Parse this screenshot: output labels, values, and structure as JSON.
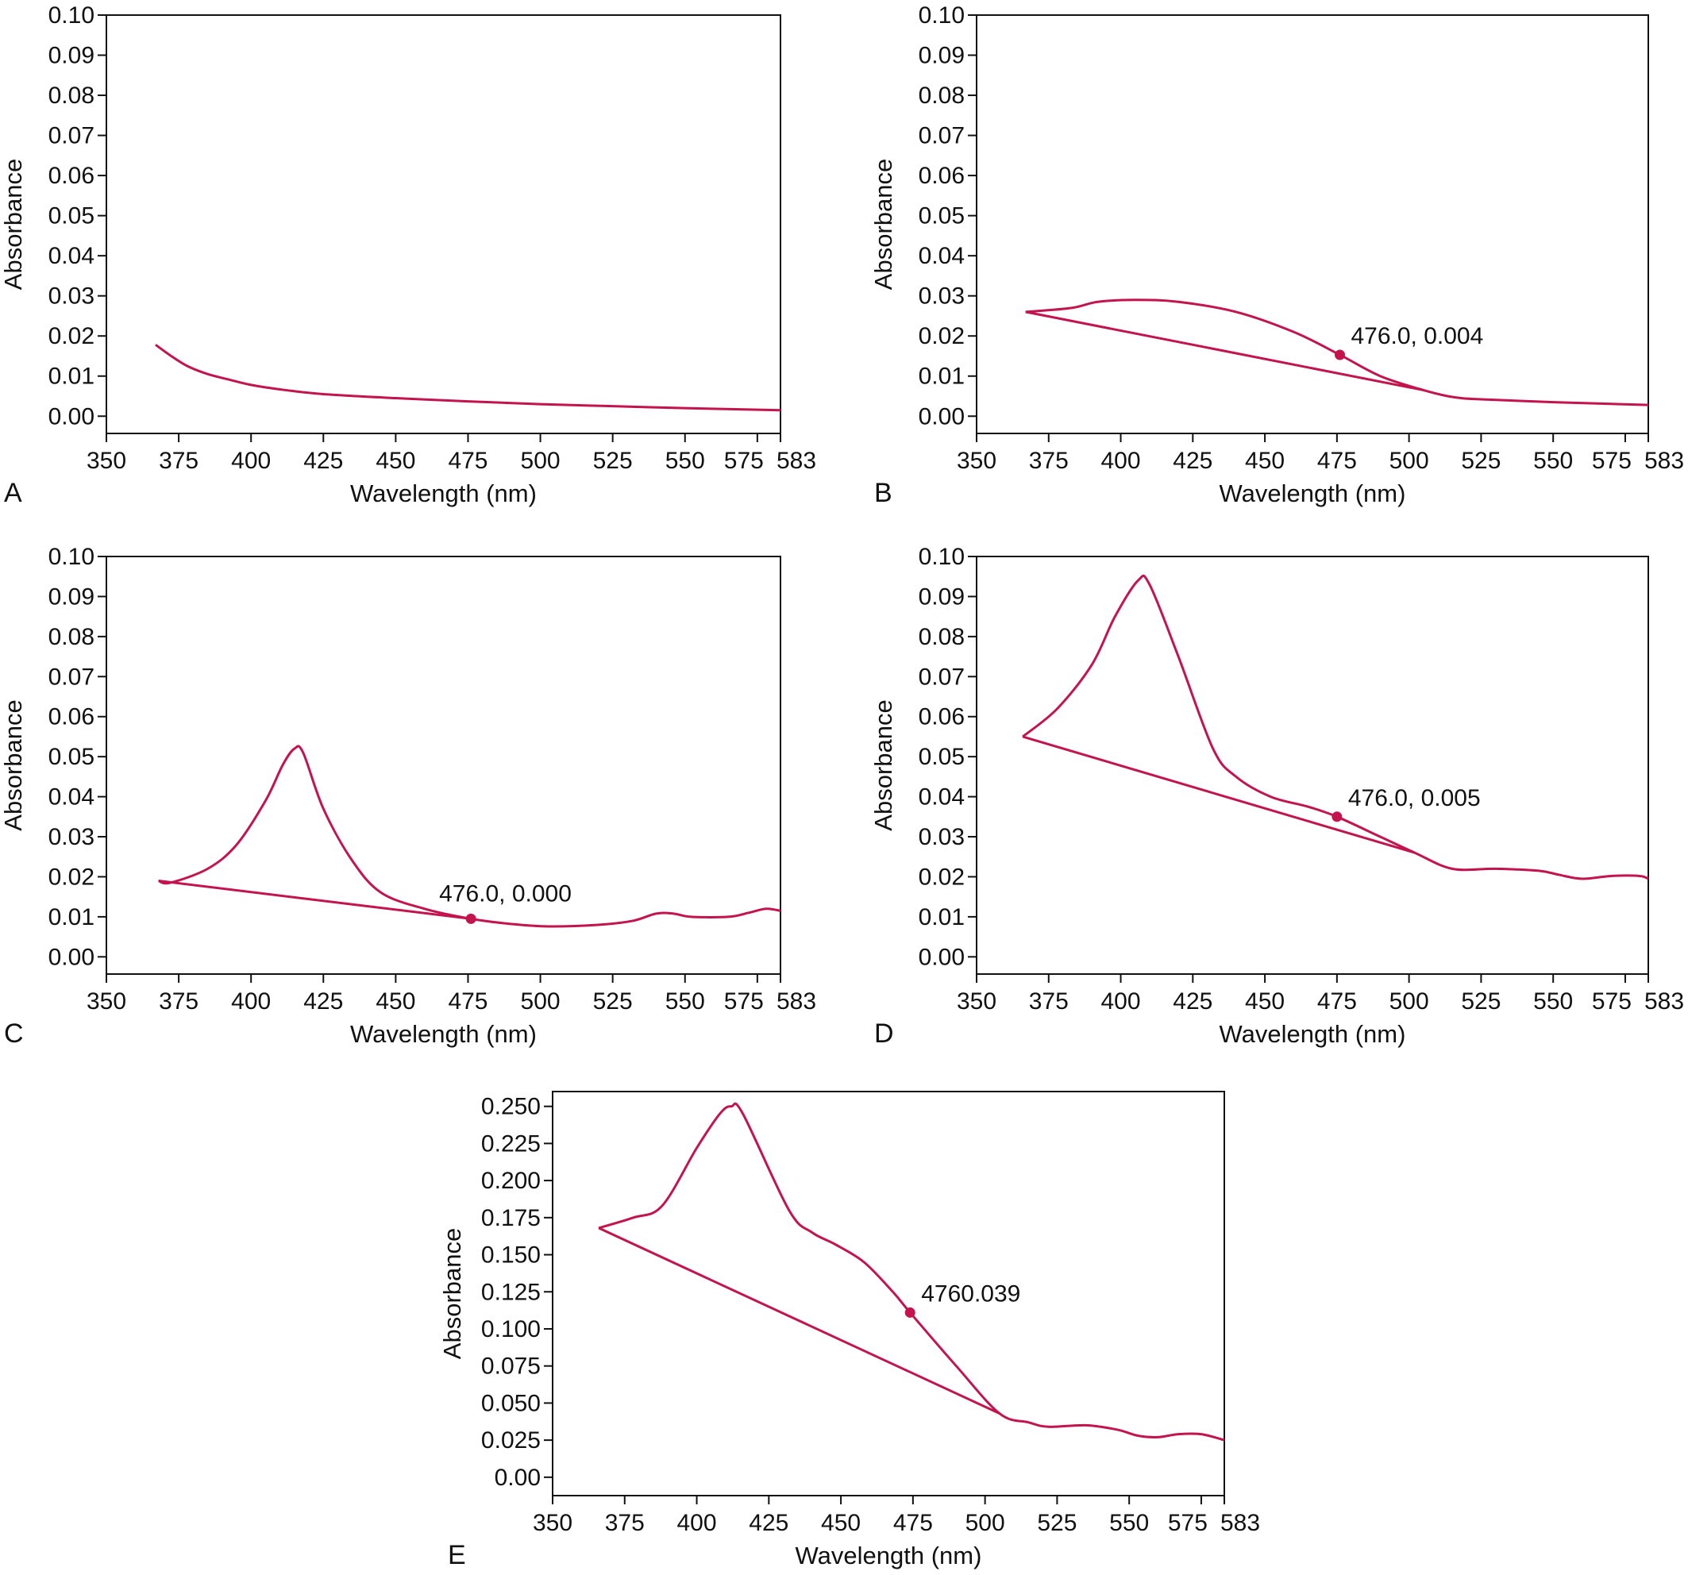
{
  "line_color": "#c4134d",
  "chart_data": [
    {
      "panel": "A",
      "type": "line",
      "xlabel": "Wavelength (nm)",
      "ylabel": "Absorbance",
      "xlim": [
        350,
        583
      ],
      "ylim": [
        -0.0043,
        0.1
      ],
      "x_ticks": [
        "350",
        "375",
        "400",
        "425",
        "450",
        "475",
        "500",
        "525",
        "550",
        "575",
        "583"
      ],
      "y_ticks": [
        "0.00",
        "0.01",
        "0.02",
        "0.03",
        "0.04",
        "0.05",
        "0.06",
        "0.07",
        "0.08",
        "0.09",
        "0.10"
      ],
      "series": [
        {
          "role": "spectrum",
          "points": [
            [
              367,
              0.0178
            ],
            [
              372,
              0.0152
            ],
            [
              378,
              0.0125
            ],
            [
              385,
              0.0105
            ],
            [
              392,
              0.0092
            ],
            [
              400,
              0.0078
            ],
            [
              412,
              0.0065
            ],
            [
              425,
              0.0055
            ],
            [
              450,
              0.0045
            ],
            [
              475,
              0.0037
            ],
            [
              500,
              0.003
            ],
            [
              525,
              0.0025
            ],
            [
              550,
              0.002
            ],
            [
              583,
              0.0015
            ]
          ]
        }
      ],
      "annotation": null
    },
    {
      "panel": "B",
      "type": "line",
      "xlabel": "Wavelength (nm)",
      "ylabel": "Absorbance",
      "xlim": [
        350,
        583
      ],
      "ylim": [
        -0.0043,
        0.1
      ],
      "x_ticks": [
        "350",
        "375",
        "400",
        "425",
        "450",
        "475",
        "500",
        "525",
        "550",
        "575",
        "583"
      ],
      "y_ticks": [
        "0.00",
        "0.01",
        "0.02",
        "0.03",
        "0.04",
        "0.05",
        "0.06",
        "0.07",
        "0.08",
        "0.09",
        "0.10"
      ],
      "series": [
        {
          "role": "spectrum",
          "points": [
            [
              367,
              0.026
            ],
            [
              383,
              0.027
            ],
            [
              392,
              0.0285
            ],
            [
              405,
              0.029
            ],
            [
              420,
              0.0285
            ],
            [
              440,
              0.026
            ],
            [
              460,
              0.021
            ],
            [
              476,
              0.0153
            ],
            [
              490,
              0.01
            ],
            [
              505,
              0.0065
            ],
            [
              515,
              0.0048
            ],
            [
              525,
              0.0042
            ],
            [
              550,
              0.0035
            ],
            [
              583,
              0.0028
            ]
          ]
        },
        {
          "role": "baseline",
          "points": [
            [
              367,
              0.026
            ],
            [
              505,
              0.0065
            ]
          ]
        }
      ],
      "annotation": {
        "x": 476,
        "y": 0.0153,
        "label": "476.0, 0.004"
      }
    },
    {
      "panel": "C",
      "type": "line",
      "xlabel": "Wavelength (nm)",
      "ylabel": "Absorbance",
      "xlim": [
        350,
        583
      ],
      "ylim": [
        -0.0043,
        0.1
      ],
      "x_ticks": [
        "350",
        "375",
        "400",
        "425",
        "450",
        "475",
        "500",
        "525",
        "550",
        "575",
        "583"
      ],
      "y_ticks": [
        "0.00",
        "0.01",
        "0.02",
        "0.03",
        "0.04",
        "0.05",
        "0.06",
        "0.07",
        "0.08",
        "0.09",
        "0.10"
      ],
      "series": [
        {
          "role": "spectrum",
          "points": [
            [
              368,
              0.019
            ],
            [
              372,
              0.0185
            ],
            [
              385,
              0.022
            ],
            [
              395,
              0.028
            ],
            [
              405,
              0.039
            ],
            [
              411,
              0.048
            ],
            [
              415,
              0.052
            ],
            [
              418,
              0.051
            ],
            [
              425,
              0.037
            ],
            [
              435,
              0.024
            ],
            [
              445,
              0.016
            ],
            [
              460,
              0.012
            ],
            [
              476,
              0.0095
            ],
            [
              490,
              0.0082
            ],
            [
              503,
              0.0076
            ],
            [
              520,
              0.008
            ],
            [
              532,
              0.009
            ],
            [
              540,
              0.0108
            ],
            [
              546,
              0.0108
            ],
            [
              552,
              0.01
            ],
            [
              565,
              0.01
            ],
            [
              572,
              0.011
            ],
            [
              578,
              0.012
            ],
            [
              583,
              0.0115
            ]
          ]
        },
        {
          "role": "baseline",
          "points": [
            [
              368,
              0.019
            ],
            [
              476,
              0.0095
            ]
          ]
        }
      ],
      "annotation": {
        "x": 476,
        "y": 0.0095,
        "label": "476.0, 0.000"
      }
    },
    {
      "panel": "D",
      "type": "line",
      "xlabel": "Wavelength (nm)",
      "ylabel": "Absorbance",
      "xlim": [
        350,
        583
      ],
      "ylim": [
        -0.0043,
        0.1
      ],
      "x_ticks": [
        "350",
        "375",
        "400",
        "425",
        "450",
        "475",
        "500",
        "525",
        "550",
        "575",
        "583"
      ],
      "y_ticks": [
        "0.00",
        "0.01",
        "0.02",
        "0.03",
        "0.04",
        "0.05",
        "0.06",
        "0.07",
        "0.08",
        "0.09",
        "0.10"
      ],
      "series": [
        {
          "role": "spectrum",
          "points": [
            [
              366,
              0.055
            ],
            [
              378,
              0.062
            ],
            [
              390,
              0.073
            ],
            [
              398,
              0.085
            ],
            [
              406,
              0.094
            ],
            [
              410,
              0.093
            ],
            [
              420,
              0.075
            ],
            [
              432,
              0.052
            ],
            [
              440,
              0.045
            ],
            [
              452,
              0.04
            ],
            [
              465,
              0.0375
            ],
            [
              475,
              0.035
            ],
            [
              490,
              0.03
            ],
            [
              502,
              0.026
            ],
            [
              515,
              0.022
            ],
            [
              530,
              0.022
            ],
            [
              545,
              0.0215
            ],
            [
              552,
              0.0205
            ],
            [
              560,
              0.0195
            ],
            [
              570,
              0.0202
            ],
            [
              580,
              0.0202
            ],
            [
              583,
              0.0195
            ]
          ]
        },
        {
          "role": "baseline",
          "points": [
            [
              366,
              0.055
            ],
            [
              502,
              0.026
            ]
          ]
        }
      ],
      "annotation": {
        "x": 475,
        "y": 0.035,
        "label": "476.0, 0.005"
      }
    },
    {
      "panel": "E",
      "type": "line",
      "xlabel": "Wavelength (nm)",
      "ylabel": "Absorbance",
      "xlim": [
        350,
        583
      ],
      "ylim": [
        -0.0124,
        0.26
      ],
      "x_ticks": [
        "350",
        "375",
        "400",
        "425",
        "450",
        "475",
        "500",
        "525",
        "550",
        "575",
        "583"
      ],
      "y_ticks": [
        "0.00",
        "0.025",
        "0.050",
        "0.075",
        "0.100",
        "0.125",
        "0.150",
        "0.175",
        "0.200",
        "0.225",
        "0.250"
      ],
      "series": [
        {
          "role": "spectrum",
          "points": [
            [
              366,
              0.168
            ],
            [
              378,
              0.175
            ],
            [
              388,
              0.183
            ],
            [
              400,
              0.222
            ],
            [
              408,
              0.245
            ],
            [
              412,
              0.25
            ],
            [
              416,
              0.245
            ],
            [
              432,
              0.18
            ],
            [
              440,
              0.165
            ],
            [
              448,
              0.157
            ],
            [
              458,
              0.145
            ],
            [
              468,
              0.125
            ],
            [
              474,
              0.111
            ],
            [
              490,
              0.075
            ],
            [
              505,
              0.043
            ],
            [
              515,
              0.037
            ],
            [
              522,
              0.034
            ],
            [
              535,
              0.035
            ],
            [
              546,
              0.032
            ],
            [
              553,
              0.028
            ],
            [
              560,
              0.027
            ],
            [
              567,
              0.029
            ],
            [
              575,
              0.029
            ],
            [
              583,
              0.025
            ]
          ]
        },
        {
          "role": "baseline",
          "points": [
            [
              366,
              0.168
            ],
            [
              505,
              0.043
            ]
          ]
        }
      ],
      "annotation": {
        "x": 474,
        "y": 0.111,
        "label": "4760.039"
      }
    }
  ]
}
